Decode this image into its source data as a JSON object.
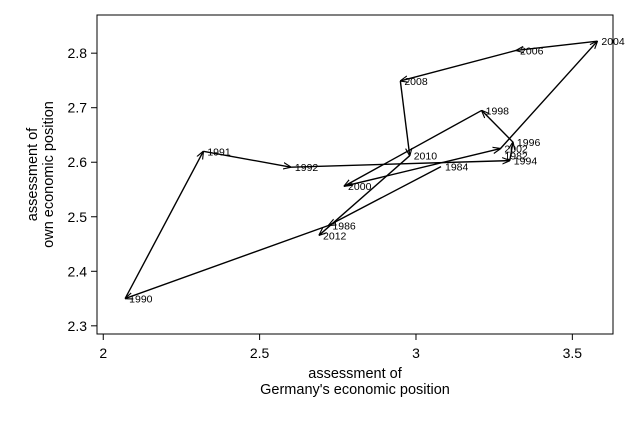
{
  "chart_data": {
    "type": "line",
    "subtype": "connected-scatter-with-arrows",
    "xlabel": [
      "assessment of",
      "Germany's economic position"
    ],
    "ylabel": [
      "assessment of",
      "own economic position"
    ],
    "xlim": [
      1.98,
      3.63
    ],
    "ylim": [
      2.285,
      2.87
    ],
    "xticks": [
      2,
      2.5,
      3,
      3.5
    ],
    "xtick_labels": [
      "2",
      "2.5",
      "3",
      "3.5"
    ],
    "yticks": [
      2.3,
      2.4,
      2.5,
      2.6,
      2.7,
      2.8
    ],
    "ytick_labels": [
      "2.3",
      "2.4",
      "2.5",
      "2.6",
      "2.7",
      "2.8"
    ],
    "grid": false,
    "line_color": "#000000",
    "points": [
      {
        "label": "1984",
        "x": 3.08,
        "y": 2.592
      },
      {
        "label": "1986",
        "x": 2.72,
        "y": 2.484
      },
      {
        "label": "1990",
        "x": 2.07,
        "y": 2.35
      },
      {
        "label": "1991",
        "x": 2.32,
        "y": 2.62
      },
      {
        "label": "1992",
        "x": 2.6,
        "y": 2.591
      },
      {
        "label": "1994",
        "x": 3.3,
        "y": 2.603
      },
      {
        "label": "1996",
        "x": 3.31,
        "y": 2.637
      },
      {
        "label": "1998",
        "x": 3.21,
        "y": 2.695
      },
      {
        "label": "2000",
        "x": 2.77,
        "y": 2.556
      },
      {
        "label": "2002",
        "x": 3.27,
        "y": 2.625
      },
      {
        "label": "2004",
        "x": 3.58,
        "y": 2.822
      },
      {
        "label": "2006",
        "x": 3.32,
        "y": 2.805
      },
      {
        "label": "2008",
        "x": 2.95,
        "y": 2.749
      },
      {
        "label": "2010",
        "x": 2.98,
        "y": 2.612
      },
      {
        "label": "2012",
        "x": 2.69,
        "y": 2.466
      }
    ],
    "extra_labels": [
      "1982"
    ]
  }
}
